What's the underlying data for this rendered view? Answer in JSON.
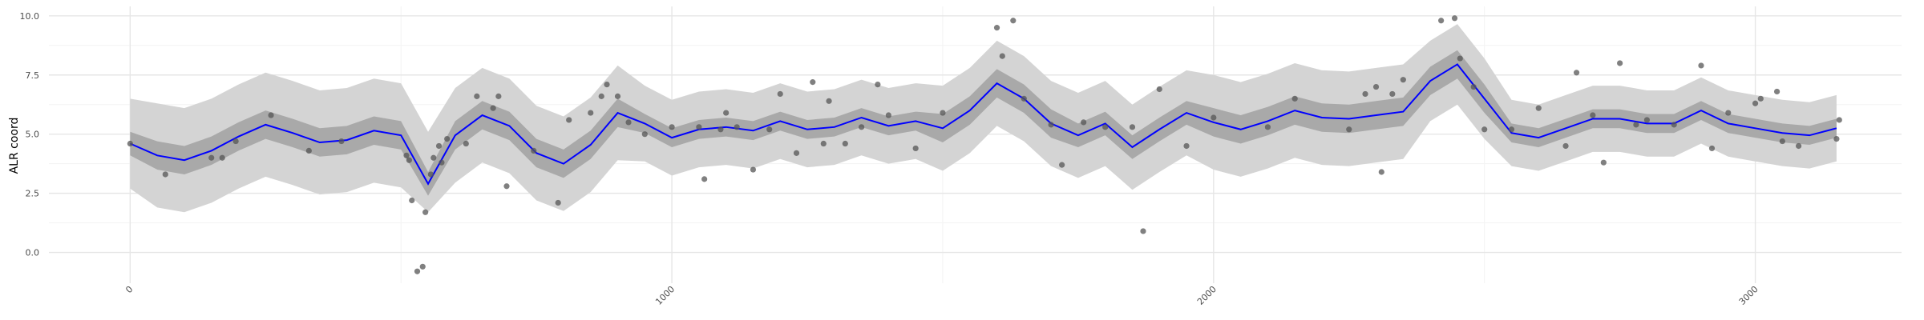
{
  "chart_data": {
    "type": "line",
    "y_label": "ALR coord",
    "xlim": [
      -150,
      3270
    ],
    "ylim": [
      -1.3,
      10.4
    ],
    "xticks": [
      0,
      1000,
      2000,
      3000
    ],
    "yticks": [
      {
        "value": 0,
        "label": "0.0"
      },
      {
        "value": 2.5,
        "label": "2.5"
      },
      {
        "value": 5,
        "label": "5.0"
      },
      {
        "value": 7.5,
        "label": "7.5"
      },
      {
        "value": 10,
        "label": "10.0"
      }
    ],
    "xminor": [
      500,
      1500,
      2500
    ],
    "yminor": [
      1.25,
      3.75,
      6.25,
      8.75
    ],
    "grid": true,
    "x": [
      0,
      50,
      100,
      150,
      200,
      250,
      300,
      350,
      400,
      450,
      500,
      550,
      600,
      650,
      700,
      750,
      800,
      850,
      900,
      950,
      1000,
      1050,
      1100,
      1150,
      1200,
      1250,
      1300,
      1350,
      1400,
      1450,
      1500,
      1550,
      1600,
      1650,
      1700,
      1750,
      1800,
      1850,
      1900,
      1950,
      2000,
      2050,
      2100,
      2150,
      2200,
      2250,
      2300,
      2350,
      2400,
      2450,
      2500,
      2550,
      2600,
      2650,
      2700,
      2750,
      2800,
      2850,
      2900,
      2950,
      3000,
      3050,
      3100,
      3150
    ],
    "bands": [
      {
        "color": "#d4d4d4",
        "lower": [
          2.7,
          1.9,
          1.7,
          2.1,
          2.7,
          3.2,
          2.85,
          2.45,
          2.55,
          2.95,
          2.75,
          1.7,
          2.95,
          3.8,
          3.35,
          2.2,
          1.75,
          2.55,
          3.9,
          3.85,
          3.25,
          3.6,
          3.7,
          3.55,
          3.95,
          3.6,
          3.7,
          4.1,
          3.75,
          3.95,
          3.45,
          4.2,
          5.35,
          4.7,
          3.65,
          3.15,
          3.65,
          2.65,
          3.4,
          4.1,
          3.5,
          3.2,
          3.55,
          4.0,
          3.7,
          3.65,
          3.8,
          3.95,
          5.55,
          6.25,
          4.8,
          3.65,
          3.45,
          3.85,
          4.25,
          4.25,
          4.05,
          4.05,
          4.6,
          4.05,
          3.85,
          3.65,
          3.55,
          3.85
        ],
        "upper": [
          6.5,
          6.3,
          6.1,
          6.5,
          7.1,
          7.6,
          7.25,
          6.85,
          6.95,
          7.35,
          7.15,
          5.1,
          6.95,
          7.8,
          7.35,
          6.2,
          5.75,
          6.55,
          7.9,
          7.05,
          6.45,
          6.8,
          6.9,
          6.75,
          7.15,
          6.8,
          6.9,
          7.3,
          6.95,
          7.15,
          7.05,
          7.8,
          8.95,
          8.3,
          7.25,
          6.75,
          7.25,
          6.25,
          7.0,
          7.7,
          7.5,
          7.2,
          7.55,
          8.0,
          7.7,
          7.65,
          7.8,
          7.95,
          8.95,
          9.65,
          8.2,
          6.45,
          6.25,
          6.65,
          7.05,
          7.05,
          6.85,
          6.85,
          7.4,
          6.85,
          6.65,
          6.45,
          6.35,
          6.65
        ]
      },
      {
        "color": "#a9a9a9",
        "lower": [
          4.1,
          3.5,
          3.3,
          3.7,
          4.3,
          4.8,
          4.45,
          4.05,
          4.15,
          4.55,
          4.35,
          2.4,
          4.35,
          5.2,
          4.75,
          3.6,
          3.15,
          3.95,
          5.3,
          5.05,
          4.45,
          4.8,
          4.9,
          4.75,
          5.15,
          4.8,
          4.9,
          5.3,
          4.95,
          5.15,
          4.65,
          5.4,
          6.55,
          5.9,
          4.85,
          4.45,
          4.95,
          3.95,
          4.7,
          5.4,
          4.9,
          4.6,
          4.95,
          5.4,
          5.1,
          5.05,
          5.2,
          5.35,
          6.65,
          7.35,
          5.9,
          4.65,
          4.45,
          4.85,
          5.25,
          5.25,
          5.05,
          5.05,
          5.6,
          5.05,
          4.85,
          4.65,
          4.55,
          4.85
        ],
        "upper": [
          5.1,
          4.7,
          4.5,
          4.9,
          5.5,
          6.0,
          5.65,
          5.25,
          5.35,
          5.75,
          5.55,
          3.4,
          5.55,
          6.4,
          5.95,
          4.8,
          4.35,
          5.15,
          6.5,
          5.85,
          5.25,
          5.6,
          5.7,
          5.55,
          5.95,
          5.6,
          5.7,
          6.1,
          5.75,
          5.95,
          5.85,
          6.6,
          7.75,
          7.1,
          6.05,
          5.45,
          5.95,
          4.95,
          5.7,
          6.4,
          6.1,
          5.8,
          6.15,
          6.6,
          6.3,
          6.25,
          6.4,
          6.55,
          7.85,
          8.55,
          7.1,
          5.45,
          5.25,
          5.65,
          6.05,
          6.05,
          5.85,
          5.85,
          6.4,
          5.85,
          5.65,
          5.45,
          5.35,
          5.65
        ]
      }
    ],
    "line": {
      "color": "#0000ff",
      "values": [
        4.6,
        4.1,
        3.9,
        4.3,
        4.9,
        5.4,
        5.05,
        4.65,
        4.75,
        5.15,
        4.95,
        2.9,
        4.95,
        5.8,
        5.35,
        4.2,
        3.75,
        4.55,
        5.9,
        5.45,
        4.85,
        5.2,
        5.3,
        5.15,
        5.55,
        5.2,
        5.3,
        5.7,
        5.35,
        5.55,
        5.25,
        6.0,
        7.15,
        6.5,
        5.45,
        4.95,
        5.45,
        4.45,
        5.2,
        5.9,
        5.5,
        5.2,
        5.55,
        6.0,
        5.7,
        5.65,
        5.8,
        5.95,
        7.25,
        7.95,
        6.5,
        5.05,
        4.85,
        5.25,
        5.65,
        5.65,
        5.45,
        5.45,
        6.0,
        5.45,
        5.25,
        5.05,
        4.95,
        5.25
      ]
    },
    "points": {
      "color": "#555555",
      "x": [
        0,
        65,
        150,
        170,
        195,
        260,
        330,
        390,
        510,
        515,
        520,
        530,
        540,
        545,
        555,
        560,
        570,
        575,
        585,
        620,
        640,
        670,
        680,
        695,
        745,
        790,
        810,
        850,
        870,
        880,
        900,
        920,
        950,
        1000,
        1050,
        1060,
        1090,
        1100,
        1120,
        1150,
        1180,
        1200,
        1230,
        1260,
        1280,
        1290,
        1320,
        1350,
        1380,
        1400,
        1450,
        1500,
        1600,
        1610,
        1630,
        1650,
        1700,
        1720,
        1760,
        1800,
        1850,
        1870,
        1900,
        1950,
        2000,
        2100,
        2150,
        2250,
        2280,
        2300,
        2310,
        2330,
        2350,
        2420,
        2445,
        2455,
        2480,
        2500,
        2550,
        2600,
        2650,
        2670,
        2700,
        2720,
        2750,
        2780,
        2800,
        2850,
        2900,
        2920,
        2950,
        3000,
        3010,
        3040,
        3050,
        3080,
        3150,
        3155
      ],
      "y": [
        4.6,
        3.3,
        4.0,
        4.0,
        4.7,
        5.8,
        4.3,
        4.7,
        4.1,
        3.9,
        2.2,
        -0.8,
        -0.6,
        1.7,
        3.3,
        4.0,
        4.5,
        3.8,
        4.8,
        4.6,
        6.6,
        6.1,
        6.6,
        2.8,
        4.3,
        2.1,
        5.6,
        5.9,
        6.6,
        7.1,
        6.6,
        5.5,
        5.0,
        5.3,
        5.3,
        3.1,
        5.2,
        5.9,
        5.3,
        3.5,
        5.2,
        6.7,
        4.2,
        7.2,
        4.6,
        6.4,
        4.6,
        5.3,
        7.1,
        5.8,
        4.4,
        5.9,
        9.5,
        8.3,
        9.8,
        6.5,
        5.4,
        3.7,
        5.5,
        5.3,
        5.3,
        0.9,
        6.9,
        4.5,
        5.7,
        5.3,
        6.5,
        5.2,
        6.7,
        7.0,
        3.4,
        6.7,
        7.3,
        9.8,
        9.9,
        8.2,
        7.0,
        5.2,
        5.2,
        6.1,
        4.5,
        7.6,
        5.8,
        3.8,
        8.0,
        5.4,
        5.6,
        5.4,
        7.9,
        4.4,
        5.9,
        6.3,
        6.5,
        6.8,
        4.7,
        4.5,
        4.8,
        5.6
      ]
    }
  }
}
